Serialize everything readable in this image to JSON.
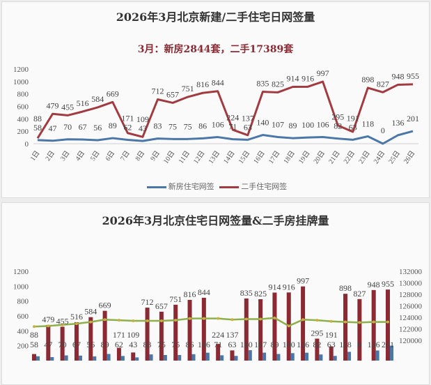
{
  "chart_data": [
    {
      "type": "line",
      "title": "2026年3月北京新建/二手住宅日网签量",
      "subtitle": "3月：新房2844套，二手17389套",
      "categories": [
        "1日",
        "2日",
        "3日",
        "4日",
        "5日",
        "6日",
        "7日",
        "8日",
        "9日",
        "10日",
        "11日",
        "12日",
        "13日",
        "14日",
        "15日",
        "16日",
        "17日",
        "18日",
        "19日",
        "20日",
        "21日",
        "22日",
        "23日",
        "24日",
        "25日",
        "26日"
      ],
      "ylim": [
        0,
        1200
      ],
      "yticks": [
        0,
        200,
        400,
        600,
        800,
        1000,
        1200
      ],
      "legend_position": "bottom",
      "series": [
        {
          "name": "新房住宅网签",
          "color": "#4a77a8",
          "values": [
            58,
            47,
            70,
            67,
            56,
            89,
            62,
            43,
            83,
            75,
            75,
            86,
            106,
            71,
            63,
            140,
            107,
            89,
            100,
            106,
            82,
            63,
            118,
            0,
            136,
            201
          ]
        },
        {
          "name": "二手住宅网签",
          "color": "#a33a3f",
          "values": [
            88,
            479,
            455,
            516,
            584,
            669,
            171,
            109,
            712,
            657,
            751,
            816,
            844,
            224,
            137,
            835,
            825,
            914,
            916,
            997,
            295,
            191,
            898,
            827,
            948,
            955
          ]
        }
      ]
    },
    {
      "type": "bar",
      "title": "2026年3月北京住宅日网签量&二手房挂牌量",
      "ylim": [
        0,
        1200
      ],
      "yticks": [
        200,
        400,
        600,
        800,
        1000,
        1200
      ],
      "y2lim": [
        118000,
        132000
      ],
      "y2ticks": [
        120000,
        122000,
        124000,
        126000,
        128000,
        130000,
        132000
      ],
      "series": [
        {
          "kind": "bar",
          "color": "#8b2a33",
          "values": [
            88,
            479,
            455,
            516,
            584,
            669,
            171,
            109,
            712,
            657,
            751,
            816,
            844,
            224,
            137,
            835,
            825,
            914,
            916,
            997,
            295,
            191,
            898,
            827,
            948,
            955
          ]
        },
        {
          "kind": "bar",
          "color": "#4a77a8",
          "values": [
            58,
            47,
            70,
            67,
            56,
            89,
            62,
            43,
            83,
            75,
            75,
            86,
            106,
            71,
            63,
            140,
            107,
            89,
            100,
            106,
            82,
            63,
            118,
            0,
            136,
            201
          ]
        },
        {
          "kind": "line",
          "axis": "right",
          "color": "#8db04a",
          "values": [
            122400,
            122500,
            122700,
            122900,
            123200,
            123600,
            123500,
            123400,
            123400,
            123400,
            123500,
            123800,
            123800,
            123800,
            123600,
            123700,
            123700,
            123900,
            122500,
            123600,
            123500,
            123300,
            123200,
            123100,
            123200,
            123200
          ]
        }
      ]
    }
  ]
}
